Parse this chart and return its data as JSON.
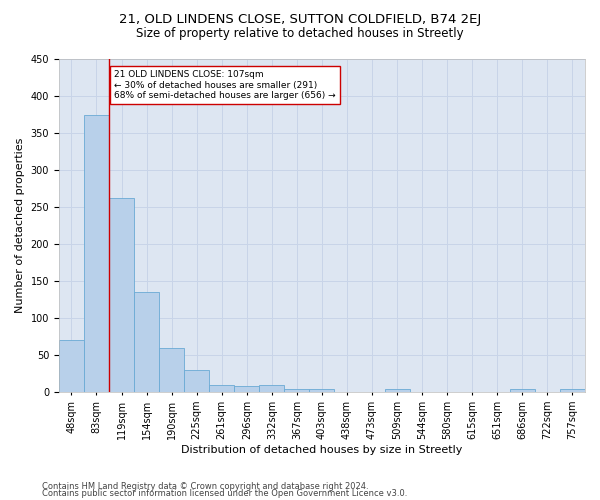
{
  "title1": "21, OLD LINDENS CLOSE, SUTTON COLDFIELD, B74 2EJ",
  "title2": "Size of property relative to detached houses in Streetly",
  "xlabel": "Distribution of detached houses by size in Streetly",
  "ylabel": "Number of detached properties",
  "categories": [
    "48sqm",
    "83sqm",
    "119sqm",
    "154sqm",
    "190sqm",
    "225sqm",
    "261sqm",
    "296sqm",
    "332sqm",
    "367sqm",
    "403sqm",
    "438sqm",
    "473sqm",
    "509sqm",
    "544sqm",
    "580sqm",
    "615sqm",
    "651sqm",
    "686sqm",
    "722sqm",
    "757sqm"
  ],
  "values": [
    70,
    375,
    263,
    135,
    60,
    30,
    10,
    8,
    10,
    5,
    5,
    0,
    0,
    5,
    0,
    0,
    0,
    0,
    5,
    0,
    5
  ],
  "bar_color": "#b8d0ea",
  "bar_edge_color": "#6aaad4",
  "grid_color": "#c8d4e8",
  "background_color": "#dde6f2",
  "vline_color": "#cc0000",
  "annotation_text": "21 OLD LINDENS CLOSE: 107sqm\n← 30% of detached houses are smaller (291)\n68% of semi-detached houses are larger (656) →",
  "annotation_box_color": "#ffffff",
  "annotation_box_edge": "#cc0000",
  "ylim": [
    0,
    450
  ],
  "yticks": [
    0,
    50,
    100,
    150,
    200,
    250,
    300,
    350,
    400,
    450
  ],
  "footer1": "Contains HM Land Registry data © Crown copyright and database right 2024.",
  "footer2": "Contains public sector information licensed under the Open Government Licence v3.0.",
  "title1_fontsize": 9.5,
  "title2_fontsize": 8.5,
  "xlabel_fontsize": 8,
  "ylabel_fontsize": 8,
  "tick_fontsize": 7,
  "footer_fontsize": 6
}
